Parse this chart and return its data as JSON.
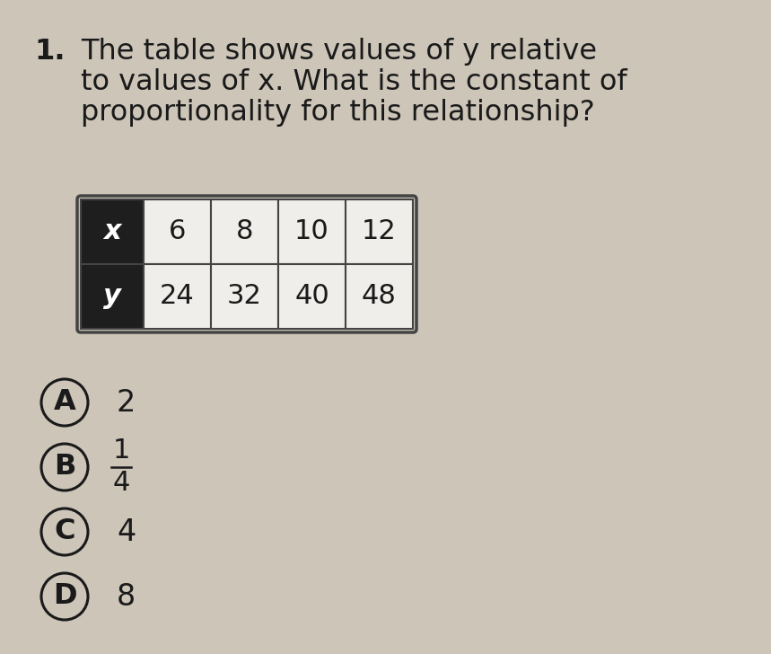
{
  "title_number": "1.",
  "title_line1": "The table shows values of y relative",
  "title_line2": "to values of x. What is the constant of",
  "title_line3": "proportionality for this relationship?",
  "table_headers": [
    "x",
    "6",
    "8",
    "10",
    "12"
  ],
  "table_row2": [
    "y",
    "24",
    "32",
    "40",
    "48"
  ],
  "header_bg": "#1e1e1e",
  "header_text_color": "#ffffff",
  "cell_bg": "#f0eeeb",
  "cell_border": "#444444",
  "options": [
    {
      "letter": "A",
      "text": "2",
      "fraction": false
    },
    {
      "letter": "B",
      "text": "",
      "fraction": true
    },
    {
      "letter": "C",
      "text": "4",
      "fraction": false
    },
    {
      "letter": "D",
      "text": "8",
      "fraction": false
    }
  ],
  "bg_color": "#ccc5b8",
  "text_color": "#1a1a1a",
  "title_fontsize": 23,
  "option_fontsize": 24,
  "table_fontsize": 22,
  "fig_width": 8.59,
  "fig_height": 7.28,
  "dpi": 100
}
